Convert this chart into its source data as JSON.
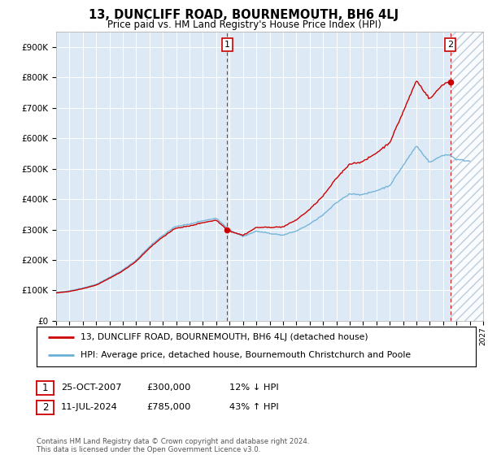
{
  "title": "13, DUNCLIFF ROAD, BOURNEMOUTH, BH6 4LJ",
  "subtitle": "Price paid vs. HM Land Registry's House Price Index (HPI)",
  "legend_line1": "13, DUNCLIFF ROAD, BOURNEMOUTH, BH6 4LJ (detached house)",
  "legend_line2": "HPI: Average price, detached house, Bournemouth Christchurch and Poole",
  "annotation1_date": "25-OCT-2007",
  "annotation1_price": "£300,000",
  "annotation1_hpi": "12% ↓ HPI",
  "annotation1_year": 2007.82,
  "annotation1_value": 300000,
  "annotation2_date": "11-JUL-2024",
  "annotation2_price": "£785,000",
  "annotation2_hpi": "43% ↑ HPI",
  "annotation2_year": 2024.54,
  "annotation2_value": 785000,
  "footer": "Contains HM Land Registry data © Crown copyright and database right 2024.\nThis data is licensed under the Open Government Licence v3.0.",
  "hpi_color": "#6aafd6",
  "sale_color": "#cc0000",
  "background_color": "#ddeaf5",
  "ylim": [
    0,
    950000
  ],
  "yticks": [
    0,
    100000,
    200000,
    300000,
    400000,
    500000,
    600000,
    700000,
    800000,
    900000
  ],
  "xmin": 1995.0,
  "xmax": 2027.0,
  "hatch_start": 2024.54
}
